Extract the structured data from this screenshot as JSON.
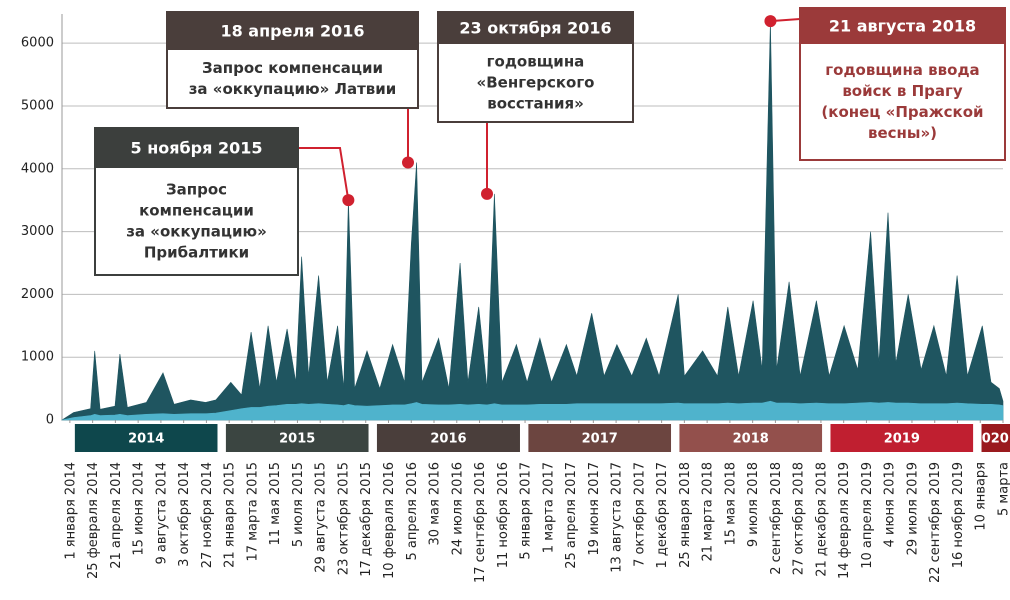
{
  "chart_data": {
    "type": "area",
    "x": [
      "2013-12-13",
      "2014-01-10",
      "2014-02-20",
      "2014-03-02",
      "2014-03-15",
      "2014-04-20",
      "2014-05-02",
      "2014-05-20",
      "2014-07-05",
      "2014-08-14",
      "2014-09-10",
      "2014-10-20",
      "2014-11-25",
      "2014-12-20",
      "2015-01-25",
      "2015-02-20",
      "2015-03-15",
      "2015-04-05",
      "2015-04-25",
      "2015-05-15",
      "2015-06-10",
      "2015-07-01",
      "2015-07-15",
      "2015-08-01",
      "2015-08-25",
      "2015-09-15",
      "2015-10-10",
      "2015-10-25",
      "2015-11-05",
      "2015-11-20",
      "2015-12-20",
      "2016-01-20",
      "2016-02-20",
      "2016-03-20",
      "2016-04-05",
      "2016-04-18",
      "2016-05-01",
      "2016-06-10",
      "2016-07-05",
      "2016-08-01",
      "2016-08-20",
      "2016-09-15",
      "2016-10-05",
      "2016-10-23",
      "2016-11-10",
      "2016-12-15",
      "2017-01-10",
      "2017-02-10",
      "2017-03-10",
      "2017-04-15",
      "2017-05-10",
      "2017-06-15",
      "2017-07-15",
      "2017-08-15",
      "2017-09-20",
      "2017-10-25",
      "2017-11-25",
      "2018-01-10",
      "2018-01-25",
      "2018-03-10",
      "2018-04-15",
      "2018-05-10",
      "2018-06-05",
      "2018-07-10",
      "2018-08-01",
      "2018-08-21",
      "2018-09-05",
      "2018-10-05",
      "2018-11-01",
      "2018-12-10",
      "2019-01-10",
      "2019-02-15",
      "2019-03-20",
      "2019-04-20",
      "2019-05-10",
      "2019-06-01",
      "2019-06-20",
      "2019-07-20",
      "2019-08-20",
      "2019-09-20",
      "2019-10-20",
      "2019-11-15",
      "2019-12-10",
      "2020-01-15",
      "2020-02-05",
      "2020-02-25",
      "2020-03-05"
    ],
    "series": [
      {
        "color": "#1f5560",
        "values": [
          0,
          120,
          180,
          1100,
          170,
          220,
          1050,
          200,
          280,
          750,
          250,
          320,
          280,
          320,
          600,
          400,
          1400,
          500,
          1500,
          600,
          1450,
          600,
          2600,
          700,
          2300,
          600,
          1500,
          500,
          3500,
          500,
          1100,
          500,
          1200,
          600,
          2800,
          4100,
          600,
          1300,
          500,
          2500,
          600,
          1800,
          500,
          3600,
          600,
          1200,
          600,
          1300,
          600,
          1200,
          700,
          1700,
          700,
          1200,
          700,
          1300,
          700,
          2000,
          700,
          1100,
          700,
          1800,
          700,
          1900,
          800,
          6350,
          800,
          2200,
          700,
          1900,
          700,
          1500,
          800,
          3000,
          900,
          3300,
          900,
          2000,
          800,
          1500,
          700,
          2300,
          700,
          1500,
          600,
          500,
          300
        ]
      },
      {
        "color": "#4fb3cc",
        "values": [
          0,
          40,
          70,
          90,
          70,
          80,
          90,
          70,
          90,
          100,
          90,
          100,
          100,
          110,
          150,
          180,
          200,
          200,
          220,
          230,
          250,
          250,
          260,
          250,
          260,
          250,
          240,
          230,
          250,
          230,
          220,
          230,
          240,
          240,
          260,
          280,
          250,
          240,
          240,
          250,
          240,
          250,
          240,
          260,
          240,
          240,
          240,
          250,
          250,
          250,
          260,
          260,
          260,
          260,
          260,
          260,
          260,
          270,
          260,
          260,
          260,
          270,
          260,
          270,
          270,
          300,
          270,
          270,
          260,
          270,
          260,
          260,
          270,
          280,
          270,
          280,
          270,
          270,
          260,
          260,
          260,
          270,
          260,
          250,
          250,
          240,
          230
        ]
      }
    ],
    "xlim": [
      "2013-12-13",
      "2020-03-05"
    ],
    "xticks": [
      {
        "value": "2014-01-01",
        "label": "1 января 2014"
      },
      {
        "value": "2014-02-25",
        "label": "25 февраля 2014"
      },
      {
        "value": "2014-04-21",
        "label": "21 апреля 2014"
      },
      {
        "value": "2014-06-15",
        "label": "15 июня 2014"
      },
      {
        "value": "2014-08-09",
        "label": "9 августа 2014"
      },
      {
        "value": "2014-10-03",
        "label": "3 октября 2014"
      },
      {
        "value": "2014-11-27",
        "label": "27 ноября 2014"
      },
      {
        "value": "2015-01-21",
        "label": "21 января 2015"
      },
      {
        "value": "2015-03-17",
        "label": "17 марта 2015"
      },
      {
        "value": "2015-05-11",
        "label": "11 мая 2015"
      },
      {
        "value": "2015-07-05",
        "label": "5 июля 2015"
      },
      {
        "value": "2015-08-29",
        "label": "29 августа 2015"
      },
      {
        "value": "2015-10-23",
        "label": "23 октября 2015"
      },
      {
        "value": "2015-12-17",
        "label": "17 декабря 2015"
      },
      {
        "value": "2016-02-10",
        "label": "10 февраля 2016"
      },
      {
        "value": "2016-04-05",
        "label": "5 апреля 2016"
      },
      {
        "value": "2016-05-30",
        "label": "30 мая 2016"
      },
      {
        "value": "2016-07-24",
        "label": "24 июля 2016"
      },
      {
        "value": "2016-09-17",
        "label": "17 сентября 2016"
      },
      {
        "value": "2016-11-11",
        "label": "11 ноября 2016"
      },
      {
        "value": "2017-01-05",
        "label": "5 января 2017"
      },
      {
        "value": "2017-03-01",
        "label": "1 марта 2017"
      },
      {
        "value": "2017-04-25",
        "label": "25 апреля 2017"
      },
      {
        "value": "2017-06-19",
        "label": "19 июня 2017"
      },
      {
        "value": "2017-08-13",
        "label": "13 августа 2017"
      },
      {
        "value": "2017-10-07",
        "label": "7 октября 2017"
      },
      {
        "value": "2017-12-01",
        "label": "1 декабря 2017"
      },
      {
        "value": "2018-01-25",
        "label": "25 января 2018"
      },
      {
        "value": "2018-03-21",
        "label": "21 марта 2018"
      },
      {
        "value": "2018-05-15",
        "label": "15 мая 2018"
      },
      {
        "value": "2018-07-09",
        "label": "9 июля 2018"
      },
      {
        "value": "2018-09-02",
        "label": "2 сентября 2018"
      },
      {
        "value": "2018-10-27",
        "label": "27 октября 2018"
      },
      {
        "value": "2018-12-21",
        "label": "21 декабря 2018"
      },
      {
        "value": "2019-02-14",
        "label": "14 февраля 2019"
      },
      {
        "value": "2019-04-10",
        "label": "10 апреля 2019"
      },
      {
        "value": "2019-06-04",
        "label": "4 июня 2019"
      },
      {
        "value": "2019-07-29",
        "label": "29 июля 2019"
      },
      {
        "value": "2019-09-22",
        "label": "22 сентября 2019"
      },
      {
        "value": "2019-11-16",
        "label": "16 ноября 2019"
      },
      {
        "value": "2020-01-10",
        "label": "10 января"
      },
      {
        "value": "2020-03-05",
        "label": "5 марта"
      }
    ],
    "ylim": [
      0,
      6400
    ],
    "yticks": [
      0,
      1000,
      2000,
      3000,
      4000,
      5000,
      6000
    ],
    "grid": true,
    "years": [
      {
        "label": "2014",
        "start": "2014-01-01",
        "end": "2014-12-31",
        "color": "#0e474c"
      },
      {
        "label": "2015",
        "start": "2015-01-01",
        "end": "2015-12-31",
        "color": "#3b4541"
      },
      {
        "label": "2016",
        "start": "2016-01-01",
        "end": "2016-12-31",
        "color": "#4a3e3b"
      },
      {
        "label": "2017",
        "start": "2017-01-01",
        "end": "2017-12-31",
        "color": "#6c4540"
      },
      {
        "label": "2018",
        "start": "2018-01-01",
        "end": "2018-12-31",
        "color": "#93504c"
      },
      {
        "label": "2019",
        "start": "2019-01-01",
        "end": "2019-12-31",
        "color": "#c01f30"
      },
      {
        "label": "2020",
        "start": "2020-01-01",
        "end": "2020-03-05",
        "color": "#9a1a1e"
      }
    ],
    "annotations": [
      {
        "date": "2015-11-05",
        "value": 3500,
        "header": "5 ноября 2015",
        "text": [
          "Запрос",
          "компенсации",
          "за «оккупацию»",
          "Прибалтики"
        ]
      },
      {
        "date": "2016-04-18",
        "value": 4100,
        "header": "18 апреля 2016",
        "text": [
          "Запрос компенсации",
          "за «оккупацию» Латвии"
        ]
      },
      {
        "date": "2016-10-23",
        "value": 3600,
        "header": "23 октября 2016",
        "text": [
          "годовщина",
          "«Венгерского",
          "восстания»"
        ]
      },
      {
        "date": "2018-08-21",
        "value": 6350,
        "header": "21 августа 2018",
        "text": [
          "годовщина ввода",
          "войск в Прагу",
          "(конец «Пражской",
          "весны»)"
        ]
      }
    ]
  }
}
